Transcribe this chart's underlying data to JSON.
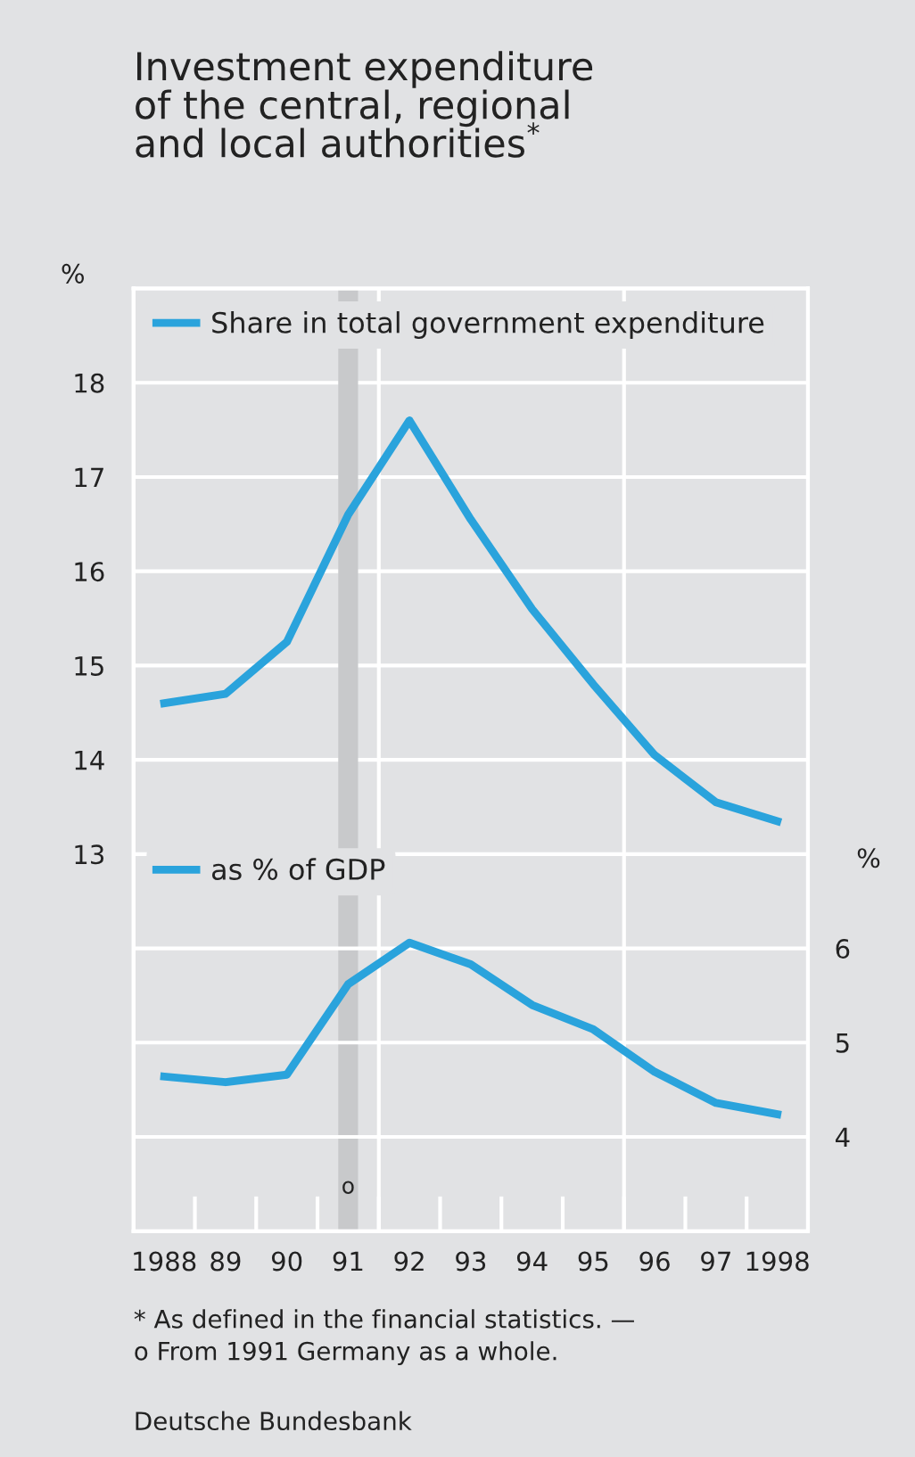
{
  "chart_data": {
    "type": "line",
    "title": "Investment expenditure\nof the central, regional\nand local authorities$^{*}$",
    "ylabel": "%",
    "y2label": "%",
    "categories": [
      "1988",
      "89",
      "90",
      "91",
      "92",
      "93",
      "94",
      "95",
      "96",
      "97",
      "1998"
    ],
    "series": [
      {
        "name": "Share in total government expenditure",
        "color": "#2aa3dc",
        "values": [
          14.6,
          14.7,
          15.25,
          16.6,
          17.6,
          16.55,
          15.6,
          14.8,
          14.05,
          13.55,
          13.35
        ]
      },
      {
        "name": "as % of GDP",
        "color": "#2aa3dc",
        "axis": "y2",
        "values": [
          4.64,
          4.58,
          4.66,
          5.62,
          6.06,
          5.83,
          5.4,
          5.14,
          4.69,
          4.36,
          4.24
        ]
      }
    ],
    "ylim": [
      9,
      19
    ],
    "yticks": [
      13,
      14,
      15,
      16,
      17,
      18
    ],
    "y2lim": [
      3,
      13
    ],
    "y2ticks": [
      4,
      5,
      6
    ],
    "grid": "y",
    "legend": "top left",
    "marker": "none",
    "line_style": "solid",
    "ref_lines": [
      {
        "axis": "x",
        "value": "91",
        "label": "o",
        "color": "#c8c9cb"
      }
    ],
    "annotations": [
      "* As defined in the financial statistics. —",
      "o From 1991 Germany as a whole.",
      "Deutsche Bundesbank"
    ]
  }
}
